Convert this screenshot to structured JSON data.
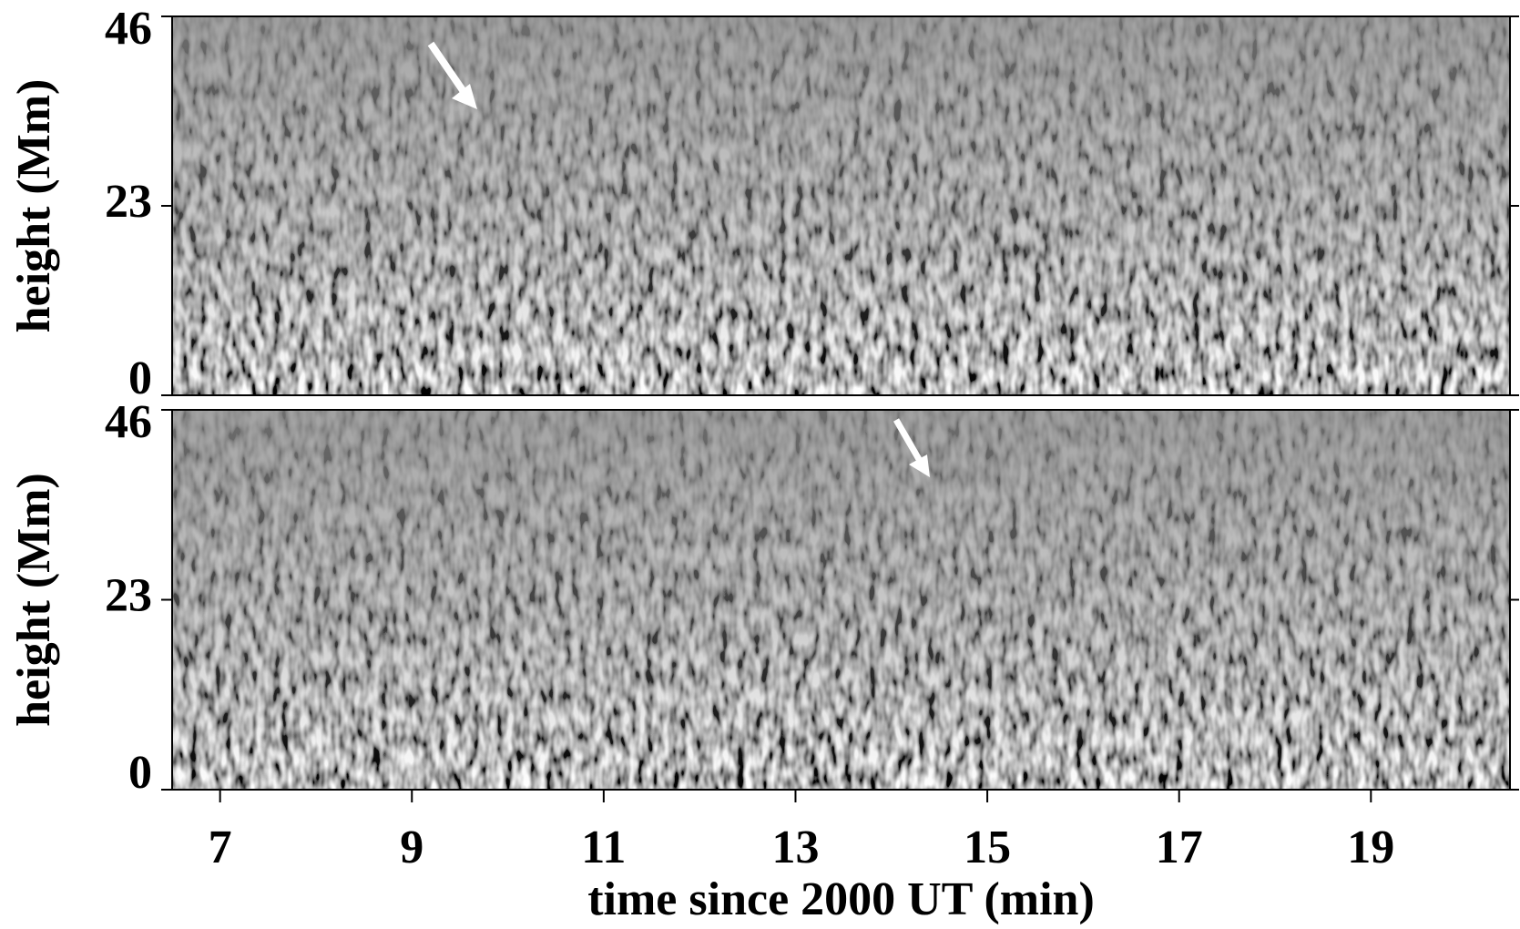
{
  "chart_data": [
    {
      "type": "image",
      "ylabel": "height (Mm)",
      "ylim": [
        0,
        46
      ],
      "yticks": [
        0,
        23,
        46
      ],
      "xlim": [
        6.5,
        20.45
      ]
    },
    {
      "type": "image",
      "ylabel": "height (Mm)",
      "ylim": [
        0,
        46
      ],
      "yticks": [
        0,
        23,
        46
      ],
      "xlim": [
        6.5,
        20.45
      ],
      "xticks": [
        7,
        9,
        11,
        13,
        15,
        17,
        19
      ],
      "xlabel": "time since 2000 UT (min)"
    }
  ]
}
